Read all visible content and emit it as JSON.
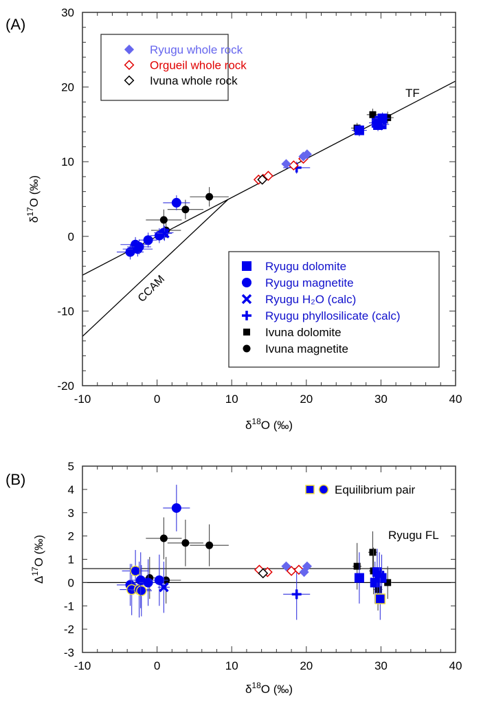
{
  "chart_data": [
    {
      "panel_label": "(A)",
      "type": "scatter",
      "xlabel": "δ18O (‰)",
      "ylabel": "δ17O (‰)",
      "xlim": [
        -10,
        40
      ],
      "ylim": [
        -20,
        30
      ],
      "xticks": [
        "-10",
        "0",
        "10",
        "20",
        "30",
        "40"
      ],
      "yticks": [
        "-20",
        "-10",
        "0",
        "10",
        "20",
        "30"
      ],
      "grid": false,
      "reference_lines": [
        {
          "name": "TF",
          "slope": 0.52,
          "intercept": 0.0
        },
        {
          "name": "CCAM",
          "slope": 0.94,
          "intercept": -4.0
        }
      ],
      "legends": [
        {
          "placement": "top-left",
          "entries": [
            {
              "label": "Ryugu whole rock",
              "marker": "diamond-filled",
              "color": "#6666ee"
            },
            {
              "label": "Orgueil whole rock",
              "marker": "diamond-open",
              "color": "#e00000"
            },
            {
              "label": "Ivuna whole rock",
              "marker": "diamond-open",
              "color": "#000000"
            }
          ]
        },
        {
          "placement": "bottom-right",
          "entries": [
            {
              "label": "Ryugu dolomite",
              "marker": "square",
              "color": "#0000ee"
            },
            {
              "label": "Ryugu magnetite",
              "marker": "circle",
              "color": "#0000ee"
            },
            {
              "label": "Ryugu H₂O (calc)",
              "marker": "x",
              "color": "#0000ee"
            },
            {
              "label": "Ryugu phyllosilicate (calc)",
              "marker": "plus",
              "color": "#0000ee"
            },
            {
              "label": "Ivuna dolomite",
              "marker": "square-small",
              "color": "#000000"
            },
            {
              "label": "Ivuna magnetite",
              "marker": "circle-small",
              "color": "#000000"
            }
          ]
        }
      ],
      "series": [
        {
          "name": "Ryugu whole rock",
          "marker": "diamond-filled",
          "color": "#6666ee",
          "points": [
            [
              17.3,
              9.7
            ],
            [
              20.1,
              11.0
            ],
            [
              19.6,
              10.7
            ]
          ]
        },
        {
          "name": "Orgueil whole rock",
          "marker": "diamond-open",
          "color": "#e00000",
          "points": [
            [
              13.6,
              7.6
            ],
            [
              14.2,
              7.7
            ],
            [
              14.9,
              8.1
            ],
            [
              18.3,
              9.5
            ],
            [
              19.6,
              10.4
            ]
          ]
        },
        {
          "name": "Ivuna whole rock",
          "marker": "diamond-open",
          "color": "#000000",
          "points": [
            [
              14.1,
              7.6
            ]
          ]
        },
        {
          "name": "Ryugu dolomite",
          "marker": "square",
          "color": "#0000ee",
          "points": [
            [
              27.1,
              14.2,
              1.0,
              0.8
            ],
            [
              29.4,
              15.2,
              1.0,
              0.8
            ],
            [
              29.8,
              15.5,
              1.0,
              0.8
            ],
            [
              30.1,
              15.0,
              1.0,
              0.8
            ],
            [
              29.6,
              14.9,
              1.0,
              0.8
            ],
            [
              30.2,
              15.8,
              1.0,
              0.8
            ]
          ]
        },
        {
          "name": "Ryugu magnetite",
          "marker": "circle",
          "color": "#0000ee",
          "points": [
            [
              -3.6,
              -2.1,
              1.8,
              1.0
            ],
            [
              -2.9,
              -1.1,
              2.0,
              1.0
            ],
            [
              -2.6,
              -1.7,
              2.0,
              1.0
            ],
            [
              -2.4,
              -1.4,
              1.6,
              1.0
            ],
            [
              -1.2,
              -0.5,
              1.2,
              1.0
            ],
            [
              0.3,
              0.1,
              1.2,
              1.0
            ],
            [
              0.9,
              0.5,
              1.3,
              1.0
            ],
            [
              2.6,
              4.5,
              1.8,
              1.0
            ]
          ]
        },
        {
          "name": "Ryugu H2O (calc)",
          "marker": "x",
          "color": "#0000ee",
          "points": [
            [
              1.0,
              0.4,
              1.0,
              1.0
            ]
          ]
        },
        {
          "name": "Ryugu phyllosilicate (calc)",
          "marker": "plus",
          "color": "#0000ee",
          "points": [
            [
              18.7,
              9.2,
              1.8,
              0.8
            ]
          ]
        },
        {
          "name": "Ivuna dolomite",
          "marker": "square-small",
          "color": "#000000",
          "points": [
            [
              26.8,
              14.5,
              0.8,
              0.7
            ],
            [
              28.9,
              16.3,
              0.8,
              0.8
            ],
            [
              30.9,
              15.9,
              0.8,
              0.8
            ]
          ]
        },
        {
          "name": "Ivuna magnetite",
          "marker": "circle-small",
          "color": "#000000",
          "points": [
            [
              0.9,
              2.2,
              2.4,
              1.4
            ],
            [
              1.2,
              0.8,
              2.0,
              1.0
            ],
            [
              3.8,
              3.6,
              2.4,
              1.3
            ],
            [
              7.0,
              5.3,
              2.6,
              1.3
            ]
          ]
        }
      ],
      "annotations": [
        "TF",
        "CCAM"
      ]
    },
    {
      "panel_label": "(B)",
      "type": "scatter",
      "xlabel": "δ18O (‰)",
      "ylabel": "Δ17O (‰)",
      "xlim": [
        -10,
        40
      ],
      "ylim": [
        -3,
        5
      ],
      "xticks": [
        "-10",
        "0",
        "10",
        "20",
        "30",
        "40"
      ],
      "yticks": [
        "-3",
        "-2",
        "-1",
        "0",
        "1",
        "2",
        "3",
        "4",
        "5"
      ],
      "grid": false,
      "reference_lines": [
        {
          "name": "Ryugu FL",
          "y": 0.6
        },
        {
          "name": "zero",
          "y": 0.0
        }
      ],
      "legends": [
        {
          "placement": "top-right",
          "entries": [
            {
              "label": "Equilibrium pair",
              "marker": "square+circle-yellow-outline",
              "color": "#0000ee"
            }
          ]
        }
      ],
      "series": [
        {
          "name": "Ryugu whole rock",
          "marker": "diamond-filled",
          "color": "#6666ee",
          "points": [
            [
              17.3,
              0.7
            ],
            [
              20.1,
              0.7
            ],
            [
              19.7,
              0.45
            ]
          ]
        },
        {
          "name": "Orgueil whole rock",
          "marker": "diamond-open",
          "color": "#e00000",
          "points": [
            [
              13.7,
              0.55
            ],
            [
              14.8,
              0.45
            ],
            [
              18.0,
              0.5
            ],
            [
              19.0,
              0.55
            ]
          ]
        },
        {
          "name": "Ivuna whole rock",
          "marker": "diamond-open",
          "color": "#000000",
          "points": [
            [
              14.2,
              0.4
            ]
          ]
        },
        {
          "name": "Ryugu dolomite",
          "marker": "square",
          "color": "#0000ee",
          "points": [
            [
              27.1,
              0.2,
              0.6,
              1.1,
              false
            ],
            [
              29.2,
              0.0,
              0.6,
              0.9,
              false
            ],
            [
              29.5,
              0.45,
              0.6,
              1.0,
              false
            ],
            [
              29.8,
              0.3,
              0.6,
              1.0,
              false
            ],
            [
              30.1,
              0.2,
              0.6,
              1.0,
              false
            ],
            [
              29.9,
              -0.7,
              0.5,
              0.9,
              true
            ]
          ]
        },
        {
          "name": "Ryugu magnetite",
          "marker": "circle",
          "color": "#0000ee",
          "points": [
            [
              -3.6,
              -0.1,
              1.8,
              0.9,
              false
            ],
            [
              -3.4,
              -0.3,
              1.6,
              1.1,
              true
            ],
            [
              -2.9,
              0.5,
              1.8,
              0.9,
              true
            ],
            [
              -2.4,
              -0.3,
              1.6,
              1.2,
              true
            ],
            [
              -2.1,
              -0.35,
              1.4,
              1.1,
              true
            ],
            [
              -2.2,
              0.1,
              1.6,
              1.2,
              false
            ],
            [
              -1.2,
              0.0,
              1.2,
              1.0,
              false
            ],
            [
              0.3,
              0.1,
              1.2,
              1.1,
              false
            ],
            [
              2.6,
              3.2,
              1.8,
              1.0,
              false
            ]
          ]
        },
        {
          "name": "Ryugu H2O (calc)",
          "marker": "x",
          "color": "#0000ee",
          "points": [
            [
              0.9,
              -0.2,
              0.8,
              1.1
            ]
          ]
        },
        {
          "name": "Ryugu phyllosilicate (calc)",
          "marker": "plus",
          "color": "#0000ee",
          "points": [
            [
              18.7,
              -0.5,
              1.8,
              1.1
            ]
          ]
        },
        {
          "name": "Ivuna dolomite",
          "marker": "square-small",
          "color": "#000000",
          "points": [
            [
              26.8,
              0.7,
              0.6,
              1.0
            ],
            [
              28.9,
              1.3,
              0.6,
              0.9
            ],
            [
              29.0,
              0.5,
              0.6,
              1.0
            ],
            [
              29.6,
              -0.3,
              0.6,
              0.9
            ],
            [
              30.9,
              0.0,
              0.6,
              0.7
            ]
          ]
        },
        {
          "name": "Ivuna magnetite",
          "marker": "circle-small",
          "color": "#000000",
          "points": [
            [
              -1.0,
              0.2,
              1.0,
              0.9
            ],
            [
              0.9,
              1.9,
              2.4,
              0.9
            ],
            [
              1.2,
              0.1,
              2.0,
              1.0
            ],
            [
              3.8,
              1.7,
              2.4,
              1.0
            ],
            [
              7.0,
              1.6,
              2.6,
              0.9
            ]
          ]
        }
      ],
      "annotations": [
        "Ryugu FL"
      ]
    }
  ],
  "labels": {
    "panel_a": "(A)",
    "panel_b": "(B)",
    "tf": "TF",
    "ccam": "CCAM",
    "ryugu_fl": "Ryugu FL",
    "equilibrium_pair": "Equilibrium pair"
  }
}
